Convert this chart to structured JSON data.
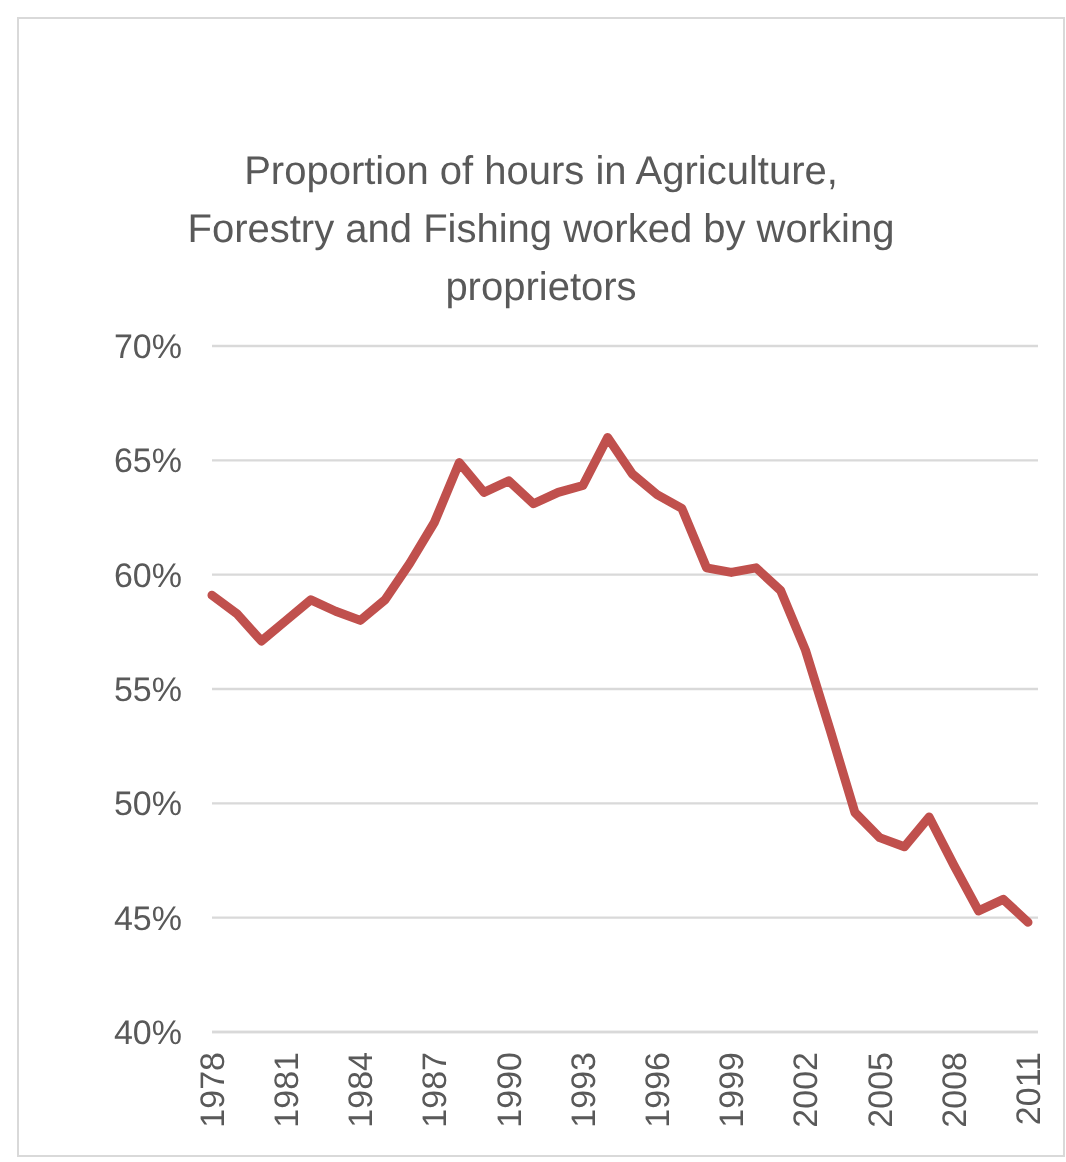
{
  "chart_data": {
    "type": "line",
    "title": "Proportion of hours in Agriculture, Forestry and Fishing worked by working proprietors",
    "categories": [
      "1978",
      null,
      null,
      "1981",
      null,
      null,
      "1984",
      null,
      null,
      "1987",
      null,
      null,
      "1990",
      null,
      null,
      "1993",
      null,
      null,
      "1996",
      null,
      null,
      "1999",
      null,
      null,
      "2002",
      null,
      null,
      "2005",
      null,
      null,
      "2008",
      null,
      null,
      "2011"
    ],
    "series": [
      {
        "color": "#c0504d",
        "values": [
          59.1,
          58.3,
          57.1,
          58.0,
          58.9,
          58.4,
          58.0,
          58.9,
          60.5,
          62.3,
          64.9,
          63.6,
          64.1,
          63.1,
          63.6,
          63.9,
          66.0,
          64.4,
          63.5,
          62.9,
          60.3,
          60.1,
          60.3,
          59.3,
          56.7,
          53.2,
          49.6,
          48.5,
          48.1,
          49.4,
          47.3,
          45.3,
          45.8,
          44.8
        ]
      }
    ],
    "ylim": [
      40,
      70
    ],
    "yticks": [
      {
        "value": 40,
        "label": "40%"
      },
      {
        "value": 45,
        "label": "45%"
      },
      {
        "value": 50,
        "label": "50%"
      },
      {
        "value": 55,
        "label": "55%"
      },
      {
        "value": 60,
        "label": "60%"
      },
      {
        "value": 65,
        "label": "65%"
      },
      {
        "value": 70,
        "label": "70%"
      }
    ],
    "grid": "y",
    "marker": "none",
    "line_style": "solid"
  }
}
